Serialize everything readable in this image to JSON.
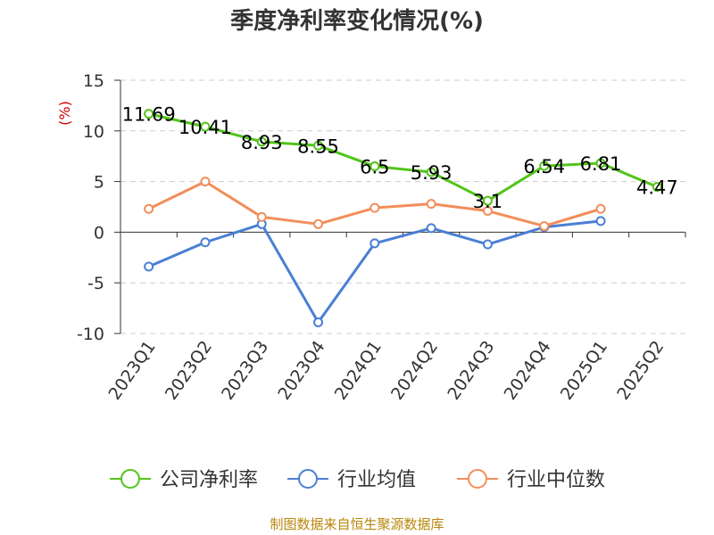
{
  "chart_data": {
    "type": "line",
    "title": "季度净利率变化情况(%)",
    "unit": "(%)",
    "categories": [
      "2023Q1",
      "2023Q2",
      "2023Q3",
      "2023Q4",
      "2024Q1",
      "2024Q2",
      "2024Q3",
      "2024Q4",
      "2025Q1",
      "2025Q2"
    ],
    "yticks": [
      "15",
      "10",
      "5",
      "0",
      "-5",
      "-10"
    ],
    "ylim": [
      -10,
      15
    ],
    "grid": true,
    "legend_position": "bottom",
    "series": [
      {
        "name": "公司净利率",
        "color": "#52c41a",
        "values": [
          11.69,
          10.41,
          8.93,
          8.55,
          6.5,
          5.93,
          3.1,
          6.54,
          6.81,
          4.47
        ],
        "labels": [
          "11.69",
          "10.41",
          "8.93",
          "8.55",
          "6.5",
          "5.93",
          "3.1",
          "6.54",
          "6.81",
          "4.47"
        ]
      },
      {
        "name": "行业均值",
        "color": "#4a7fd4",
        "values": [
          -3.4,
          -1.0,
          0.8,
          -8.9,
          -1.1,
          0.4,
          -1.2,
          0.5,
          1.1,
          null
        ]
      },
      {
        "name": "行业中位数",
        "color": "#f28e5b",
        "values": [
          2.3,
          5.0,
          1.5,
          0.8,
          2.4,
          2.8,
          2.1,
          0.6,
          2.3,
          null
        ]
      }
    ]
  },
  "source": "制图数据来自恒生聚源数据库"
}
